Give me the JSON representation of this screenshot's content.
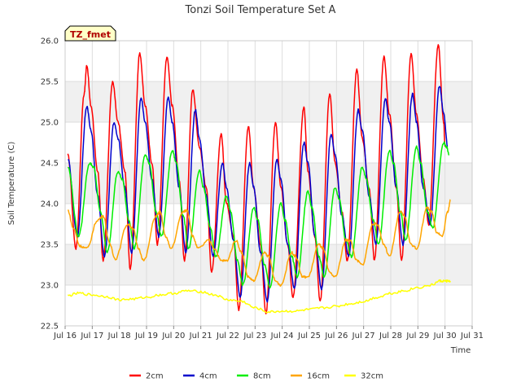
{
  "chart_data": {
    "type": "line",
    "title": "Tonzi Soil Temperature Set A",
    "xlabel": "Time",
    "ylabel": "Soil Temperature (C)",
    "tag": "TZ_fmet",
    "xlim": [
      16,
      31
    ],
    "ylim": [
      22.5,
      26.0
    ],
    "x_ticks": [
      16,
      17,
      18,
      19,
      20,
      21,
      22,
      23,
      24,
      25,
      26,
      27,
      28,
      29,
      30,
      31
    ],
    "x_tick_labels": [
      "Jul 16",
      "Jul 17",
      "Jul 18",
      "Jul 19",
      "Jul 20",
      "Jul 21",
      "Jul 22",
      "Jul 23",
      "Jul 24",
      "Jul 25",
      "Jul 26",
      "Jul 27",
      "Jul 28",
      "Jul 29",
      "Jul 30",
      "Jul 31"
    ],
    "y_ticks": [
      22.5,
      23.0,
      23.5,
      24.0,
      24.5,
      25.0,
      25.5,
      26.0
    ],
    "y_tick_labels": [
      "22.5",
      "23.0",
      "23.5",
      "24.0",
      "24.5",
      "25.0",
      "25.5",
      "26.0"
    ],
    "grid": true,
    "legend_position": "bottom",
    "series": [
      {
        "name": "2cm",
        "color": "#ff0000",
        "points": [
          [
            16.1,
            24.6
          ],
          [
            16.4,
            23.45
          ],
          [
            16.7,
            25.35
          ],
          [
            16.8,
            25.7
          ],
          [
            16.95,
            25.2
          ],
          [
            17.2,
            24.4
          ],
          [
            17.4,
            23.3
          ],
          [
            17.75,
            25.5
          ],
          [
            17.95,
            25.0
          ],
          [
            18.2,
            24.4
          ],
          [
            18.4,
            23.2
          ],
          [
            18.75,
            25.85
          ],
          [
            18.95,
            25.2
          ],
          [
            19.2,
            24.5
          ],
          [
            19.4,
            23.5
          ],
          [
            19.75,
            25.8
          ],
          [
            19.95,
            25.2
          ],
          [
            20.2,
            24.3
          ],
          [
            20.4,
            23.3
          ],
          [
            20.7,
            25.4
          ],
          [
            20.95,
            24.7
          ],
          [
            21.2,
            24.2
          ],
          [
            21.4,
            23.15
          ],
          [
            21.75,
            24.85
          ],
          [
            21.95,
            24.0
          ],
          [
            22.2,
            23.6
          ],
          [
            22.4,
            22.7
          ],
          [
            22.75,
            24.95
          ],
          [
            22.95,
            24.2
          ],
          [
            23.2,
            23.5
          ],
          [
            23.4,
            22.65
          ],
          [
            23.75,
            25.0
          ],
          [
            23.95,
            24.2
          ],
          [
            24.2,
            23.5
          ],
          [
            24.4,
            22.85
          ],
          [
            24.8,
            25.2
          ],
          [
            24.95,
            24.4
          ],
          [
            25.2,
            23.6
          ],
          [
            25.4,
            22.8
          ],
          [
            25.75,
            25.35
          ],
          [
            25.95,
            24.5
          ],
          [
            26.2,
            23.9
          ],
          [
            26.4,
            23.3
          ],
          [
            26.75,
            25.65
          ],
          [
            26.95,
            24.8
          ],
          [
            27.2,
            24.2
          ],
          [
            27.4,
            23.3
          ],
          [
            27.75,
            25.8
          ],
          [
            27.95,
            25.1
          ],
          [
            28.2,
            24.2
          ],
          [
            28.4,
            23.3
          ],
          [
            28.75,
            25.85
          ],
          [
            28.95,
            25.1
          ],
          [
            29.2,
            24.3
          ],
          [
            29.4,
            23.75
          ],
          [
            29.75,
            25.95
          ],
          [
            29.95,
            25.0
          ],
          [
            30.0,
            24.7
          ]
        ]
      },
      {
        "name": "4cm",
        "color": "#0000cc",
        "points": [
          [
            16.1,
            24.55
          ],
          [
            16.45,
            23.6
          ],
          [
            16.8,
            25.2
          ],
          [
            16.95,
            24.9
          ],
          [
            17.2,
            24.1
          ],
          [
            17.45,
            23.35
          ],
          [
            17.8,
            25.0
          ],
          [
            17.95,
            24.8
          ],
          [
            18.2,
            24.2
          ],
          [
            18.45,
            23.4
          ],
          [
            18.8,
            25.3
          ],
          [
            18.95,
            25.0
          ],
          [
            19.2,
            24.3
          ],
          [
            19.45,
            23.6
          ],
          [
            19.8,
            25.3
          ],
          [
            19.95,
            25.0
          ],
          [
            20.2,
            24.2
          ],
          [
            20.45,
            23.4
          ],
          [
            20.8,
            25.15
          ],
          [
            20.95,
            24.8
          ],
          [
            21.2,
            24.1
          ],
          [
            21.45,
            23.35
          ],
          [
            21.8,
            24.5
          ],
          [
            21.95,
            24.2
          ],
          [
            22.2,
            23.55
          ],
          [
            22.45,
            22.85
          ],
          [
            22.8,
            24.5
          ],
          [
            22.95,
            24.2
          ],
          [
            23.2,
            23.4
          ],
          [
            23.45,
            22.8
          ],
          [
            23.8,
            24.55
          ],
          [
            23.95,
            24.3
          ],
          [
            24.2,
            23.5
          ],
          [
            24.45,
            22.95
          ],
          [
            24.8,
            24.75
          ],
          [
            24.95,
            24.5
          ],
          [
            25.2,
            23.6
          ],
          [
            25.45,
            22.95
          ],
          [
            25.8,
            24.85
          ],
          [
            25.95,
            24.6
          ],
          [
            26.2,
            23.85
          ],
          [
            26.45,
            23.35
          ],
          [
            26.8,
            25.15
          ],
          [
            26.95,
            24.9
          ],
          [
            27.2,
            24.1
          ],
          [
            27.45,
            23.5
          ],
          [
            27.8,
            25.3
          ],
          [
            27.95,
            25.0
          ],
          [
            28.2,
            24.2
          ],
          [
            28.45,
            23.5
          ],
          [
            28.8,
            25.35
          ],
          [
            28.95,
            25.0
          ],
          [
            29.2,
            24.2
          ],
          [
            29.45,
            23.75
          ],
          [
            29.8,
            25.45
          ],
          [
            29.95,
            25.1
          ],
          [
            30.1,
            24.7
          ]
        ]
      },
      {
        "name": "8cm",
        "color": "#00ee00",
        "points": [
          [
            16.1,
            24.45
          ],
          [
            16.5,
            23.6
          ],
          [
            16.9,
            24.5
          ],
          [
            17.05,
            24.45
          ],
          [
            17.3,
            23.9
          ],
          [
            17.55,
            23.4
          ],
          [
            17.95,
            24.4
          ],
          [
            18.1,
            24.3
          ],
          [
            18.35,
            23.8
          ],
          [
            18.55,
            23.45
          ],
          [
            18.95,
            24.6
          ],
          [
            19.1,
            24.5
          ],
          [
            19.35,
            23.9
          ],
          [
            19.55,
            23.6
          ],
          [
            19.95,
            24.65
          ],
          [
            20.1,
            24.5
          ],
          [
            20.35,
            23.85
          ],
          [
            20.55,
            23.45
          ],
          [
            20.95,
            24.4
          ],
          [
            21.1,
            24.2
          ],
          [
            21.35,
            23.7
          ],
          [
            21.55,
            23.35
          ],
          [
            21.95,
            24.1
          ],
          [
            22.1,
            23.9
          ],
          [
            22.35,
            23.3
          ],
          [
            22.55,
            23.0
          ],
          [
            22.95,
            23.95
          ],
          [
            23.1,
            23.8
          ],
          [
            23.35,
            23.25
          ],
          [
            23.55,
            22.98
          ],
          [
            23.95,
            24.0
          ],
          [
            24.1,
            23.8
          ],
          [
            24.35,
            23.35
          ],
          [
            24.55,
            23.1
          ],
          [
            24.95,
            24.15
          ],
          [
            25.1,
            23.95
          ],
          [
            25.35,
            23.35
          ],
          [
            25.55,
            23.1
          ],
          [
            25.95,
            24.2
          ],
          [
            26.1,
            24.05
          ],
          [
            26.35,
            23.55
          ],
          [
            26.55,
            23.35
          ],
          [
            26.95,
            24.45
          ],
          [
            27.1,
            24.3
          ],
          [
            27.35,
            23.8
          ],
          [
            27.55,
            23.5
          ],
          [
            27.95,
            24.65
          ],
          [
            28.1,
            24.5
          ],
          [
            28.35,
            23.9
          ],
          [
            28.55,
            23.55
          ],
          [
            28.95,
            24.7
          ],
          [
            29.1,
            24.5
          ],
          [
            29.35,
            23.9
          ],
          [
            29.55,
            23.7
          ],
          [
            29.95,
            24.75
          ],
          [
            30.05,
            24.7
          ],
          [
            30.15,
            24.6
          ]
        ]
      },
      {
        "name": "16cm",
        "color": "#ffa500",
        "points": [
          [
            16.1,
            23.92
          ],
          [
            16.3,
            23.7
          ],
          [
            16.55,
            23.48
          ],
          [
            16.8,
            23.45
          ],
          [
            17.2,
            23.8
          ],
          [
            17.4,
            23.85
          ],
          [
            17.65,
            23.5
          ],
          [
            17.85,
            23.32
          ],
          [
            18.3,
            23.75
          ],
          [
            18.5,
            23.7
          ],
          [
            18.7,
            23.45
          ],
          [
            18.9,
            23.3
          ],
          [
            19.35,
            23.85
          ],
          [
            19.5,
            23.9
          ],
          [
            19.7,
            23.6
          ],
          [
            19.9,
            23.45
          ],
          [
            20.35,
            23.9
          ],
          [
            20.5,
            23.92
          ],
          [
            20.7,
            23.6
          ],
          [
            20.9,
            23.45
          ],
          [
            21.3,
            23.55
          ],
          [
            21.5,
            23.45
          ],
          [
            21.75,
            23.3
          ],
          [
            21.95,
            23.3
          ],
          [
            22.3,
            23.55
          ],
          [
            22.5,
            23.4
          ],
          [
            22.75,
            23.1
          ],
          [
            22.95,
            23.05
          ],
          [
            23.35,
            23.4
          ],
          [
            23.5,
            23.35
          ],
          [
            23.75,
            23.05
          ],
          [
            23.95,
            23.0
          ],
          [
            24.35,
            23.4
          ],
          [
            24.5,
            23.35
          ],
          [
            24.75,
            23.1
          ],
          [
            24.95,
            23.1
          ],
          [
            25.35,
            23.5
          ],
          [
            25.5,
            23.45
          ],
          [
            25.75,
            23.15
          ],
          [
            25.95,
            23.1
          ],
          [
            26.35,
            23.55
          ],
          [
            26.5,
            23.55
          ],
          [
            26.75,
            23.3
          ],
          [
            26.95,
            23.25
          ],
          [
            27.35,
            23.75
          ],
          [
            27.5,
            23.75
          ],
          [
            27.75,
            23.5
          ],
          [
            27.95,
            23.35
          ],
          [
            28.35,
            23.9
          ],
          [
            28.5,
            23.85
          ],
          [
            28.75,
            23.5
          ],
          [
            28.95,
            23.45
          ],
          [
            29.35,
            23.95
          ],
          [
            29.5,
            23.9
          ],
          [
            29.7,
            23.65
          ],
          [
            29.9,
            23.6
          ],
          [
            30.1,
            23.9
          ],
          [
            30.2,
            24.05
          ]
        ]
      },
      {
        "name": "32cm",
        "color": "#ffff00",
        "points": [
          [
            16.1,
            22.87
          ],
          [
            16.5,
            22.9
          ],
          [
            17.0,
            22.88
          ],
          [
            17.5,
            22.86
          ],
          [
            18.0,
            22.82
          ],
          [
            18.5,
            22.83
          ],
          [
            19.0,
            22.85
          ],
          [
            19.5,
            22.88
          ],
          [
            20.0,
            22.9
          ],
          [
            20.5,
            22.93
          ],
          [
            21.0,
            22.92
          ],
          [
            21.5,
            22.88
          ],
          [
            22.0,
            22.82
          ],
          [
            22.5,
            22.8
          ],
          [
            23.0,
            22.72
          ],
          [
            23.5,
            22.67
          ],
          [
            24.0,
            22.68
          ],
          [
            24.5,
            22.68
          ],
          [
            25.0,
            22.7
          ],
          [
            25.5,
            22.72
          ],
          [
            26.0,
            22.74
          ],
          [
            26.5,
            22.77
          ],
          [
            27.0,
            22.8
          ],
          [
            27.5,
            22.85
          ],
          [
            28.0,
            22.9
          ],
          [
            28.5,
            22.93
          ],
          [
            29.0,
            22.97
          ],
          [
            29.5,
            23.0
          ],
          [
            29.8,
            23.05
          ],
          [
            30.0,
            23.05
          ],
          [
            30.2,
            23.05
          ]
        ]
      }
    ]
  }
}
